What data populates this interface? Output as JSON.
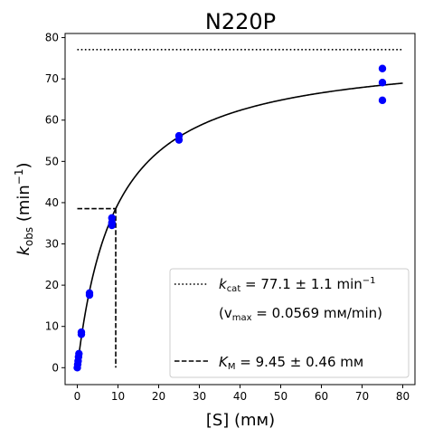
{
  "chart_data": {
    "type": "scatter",
    "title": "N220P",
    "xlabel": "[S] (mᴍ)",
    "ylabel": {
      "main": "k",
      "sub": "obs",
      "rest": " (min",
      "sup": "−1",
      "close": ")"
    },
    "xlim": [
      -3,
      83
    ],
    "ylim": [
      -4.1,
      81
    ],
    "xticks": [
      0,
      10,
      20,
      30,
      40,
      50,
      60,
      70,
      80
    ],
    "yticks": [
      0,
      10,
      20,
      30,
      40,
      50,
      60,
      70,
      80
    ],
    "grid": false,
    "legend_position": "lower-right",
    "colors": {
      "points": "#0000ff",
      "lines": "#000000"
    },
    "points": [
      {
        "x": 0,
        "y": 0
      },
      {
        "x": 0.1,
        "y": 0.8
      },
      {
        "x": 0.2,
        "y": 1.6
      },
      {
        "x": 0.3,
        "y": 2.6
      },
      {
        "x": 0.4,
        "y": 3.4
      },
      {
        "x": 1,
        "y": 8.1
      },
      {
        "x": 1,
        "y": 8.6
      },
      {
        "x": 3,
        "y": 17.6
      },
      {
        "x": 3,
        "y": 18.1
      },
      {
        "x": 8.5,
        "y": 34.5
      },
      {
        "x": 8.5,
        "y": 35.2
      },
      {
        "x": 8.5,
        "y": 36.3
      },
      {
        "x": 25,
        "y": 55.2
      },
      {
        "x": 25,
        "y": 56.2
      },
      {
        "x": 75,
        "y": 64.8
      },
      {
        "x": 75,
        "y": 69.1
      },
      {
        "x": 75,
        "y": 72.5
      }
    ],
    "fit": {
      "model": "michaelis-menten",
      "kcat": 77.1,
      "km": 9.45,
      "x_range": [
        0,
        80
      ]
    },
    "legend": [
      {
        "style": "dotted",
        "label_main": "k",
        "label_sub": "cat",
        "label_rest": " = 77.1 ± 1.1 min",
        "label_sup": "−1",
        "sub_main": "(v",
        "sub_sub": "max",
        "sub_rest": " = 0.0569 mᴍ/min)"
      },
      {
        "style": "dashed",
        "label_main": "K",
        "label_sub": "M",
        "label_rest": " = 9.45 ± 0.46 mᴍ"
      }
    ]
  }
}
